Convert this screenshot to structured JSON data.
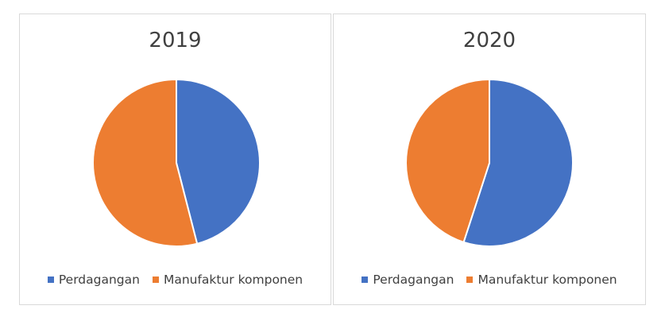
{
  "colors": {
    "Perdagangan": "#4472c4",
    "Manufaktur komponen": "#ed7d31"
  },
  "chart_data": [
    {
      "type": "pie",
      "title": "2019",
      "labels": [
        "Perdagangan",
        "Manufaktur komponen"
      ],
      "values": [
        46,
        54
      ],
      "legend_position": "bottom"
    },
    {
      "type": "pie",
      "title": "2020",
      "labels": [
        "Perdagangan",
        "Manufaktur komponen"
      ],
      "values": [
        55,
        45
      ],
      "legend_position": "bottom"
    }
  ]
}
